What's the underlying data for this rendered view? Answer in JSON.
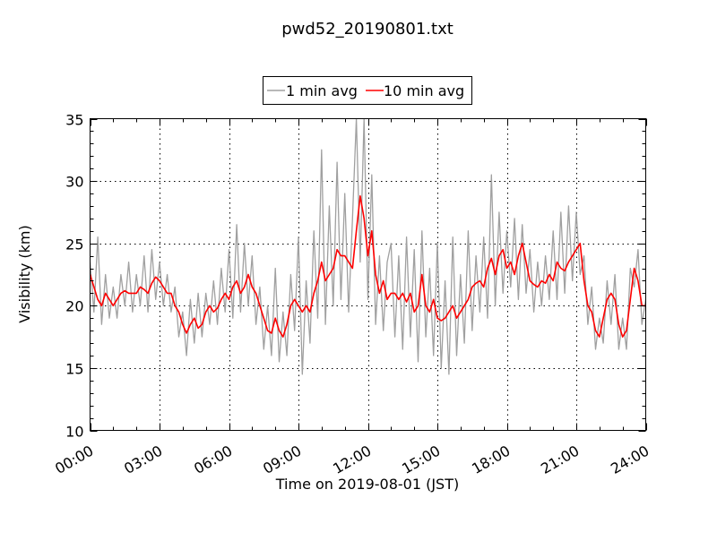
{
  "chart_data": {
    "type": "line",
    "title": "pwd52_20190801.txt",
    "xlabel": "Time on 2019-08-01 (JST)",
    "ylabel": "Visibility (km)",
    "xlim_hours": [
      0,
      24
    ],
    "ylim": [
      10,
      35
    ],
    "x_ticks": [
      0,
      3,
      6,
      9,
      12,
      15,
      18,
      21,
      24
    ],
    "x_tick_labels": [
      "00:00",
      "03:00",
      "06:00",
      "09:00",
      "12:00",
      "15:00",
      "18:00",
      "21:00",
      "24:00"
    ],
    "y_ticks": [
      10,
      15,
      20,
      25,
      30,
      35
    ],
    "y_tick_labels": [
      "10",
      "15",
      "20",
      "25",
      "30",
      "35"
    ],
    "grid": true,
    "legend_placement": "top-center-outside",
    "x_step_minutes": 10,
    "series": [
      {
        "name": "1 min avg",
        "color": "#a0a0a0",
        "values": [
          23.5,
          19.5,
          25.5,
          18.5,
          22.5,
          19.0,
          21.5,
          19.0,
          22.5,
          20.0,
          23.5,
          19.5,
          22.5,
          20.0,
          24.0,
          19.5,
          24.5,
          20.5,
          23.5,
          20.0,
          22.5,
          19.5,
          21.5,
          17.5,
          19.5,
          16.0,
          20.5,
          17.0,
          21.0,
          17.5,
          21.0,
          18.5,
          22.0,
          18.5,
          23.0,
          19.5,
          24.5,
          19.0,
          26.5,
          19.5,
          25.0,
          20.0,
          24.0,
          18.5,
          21.5,
          16.5,
          20.0,
          16.0,
          23.0,
          15.5,
          19.5,
          16.0,
          22.5,
          18.0,
          25.5,
          14.5,
          22.0,
          17.0,
          26.0,
          19.0,
          32.5,
          18.5,
          28.0,
          20.0,
          31.5,
          20.5,
          29.0,
          19.5,
          27.0,
          35.0,
          23.5,
          35.0,
          20.5,
          30.5,
          18.5,
          24.0,
          18.0,
          23.5,
          25.0,
          17.5,
          24.0,
          16.5,
          25.5,
          17.5,
          24.5,
          15.5,
          26.0,
          17.5,
          23.0,
          16.0,
          25.0,
          15.0,
          22.0,
          14.5,
          25.5,
          16.0,
          22.5,
          17.0,
          26.0,
          18.0,
          24.0,
          19.5,
          25.5,
          19.0,
          30.5,
          20.0,
          27.5,
          21.0,
          26.0,
          21.5,
          27.0,
          20.5,
          26.5,
          21.0,
          24.5,
          19.5,
          23.5,
          20.0,
          24.0,
          20.5,
          26.0,
          20.5,
          27.5,
          21.0,
          28.0,
          22.0,
          27.5,
          22.5,
          24.0,
          18.5,
          21.5,
          16.5,
          19.0,
          17.0,
          22.0,
          18.5,
          22.5,
          16.5,
          19.0,
          16.5,
          23.0,
          21.5,
          24.5,
          18.5,
          20.5
        ]
      },
      {
        "name": "10 min avg",
        "color": "#ff0000",
        "values": [
          22.5,
          21.5,
          20.5,
          20.0,
          21.0,
          20.5,
          20.0,
          20.5,
          21.0,
          21.2,
          21.0,
          21.0,
          21.0,
          21.5,
          21.3,
          21.0,
          21.8,
          22.3,
          22.0,
          21.5,
          21.0,
          21.0,
          20.0,
          19.5,
          18.5,
          17.8,
          18.5,
          19.0,
          18.2,
          18.5,
          19.5,
          20.0,
          19.5,
          19.8,
          20.5,
          21.0,
          20.5,
          21.5,
          22.0,
          21.0,
          21.5,
          22.5,
          21.5,
          21.0,
          20.0,
          19.0,
          18.0,
          17.8,
          19.0,
          18.0,
          17.5,
          18.5,
          20.0,
          20.5,
          20.0,
          19.5,
          20.0,
          19.5,
          21.0,
          22.0,
          23.5,
          22.0,
          22.5,
          23.0,
          24.5,
          24.0,
          24.0,
          23.5,
          23.0,
          26.0,
          28.8,
          27.0,
          24.0,
          26.0,
          22.5,
          21.0,
          22.0,
          20.5,
          21.0,
          21.0,
          20.5,
          21.0,
          20.3,
          21.0,
          19.5,
          20.0,
          22.5,
          20.0,
          19.5,
          20.5,
          19.0,
          18.8,
          19.0,
          19.5,
          20.0,
          19.0,
          19.5,
          20.0,
          20.5,
          21.5,
          21.8,
          22.0,
          21.5,
          23.0,
          23.8,
          22.5,
          24.0,
          24.5,
          23.0,
          23.5,
          22.5,
          24.0,
          25.0,
          23.5,
          22.0,
          21.7,
          21.5,
          22.0,
          21.8,
          22.5,
          22.0,
          23.5,
          23.0,
          22.8,
          23.5,
          24.0,
          24.5,
          25.0,
          22.0,
          20.0,
          19.5,
          18.0,
          17.5,
          19.0,
          20.5,
          21.0,
          20.5,
          18.5,
          17.5,
          18.0,
          20.5,
          23.0,
          22.0,
          20.0,
          20.0
        ]
      }
    ]
  }
}
